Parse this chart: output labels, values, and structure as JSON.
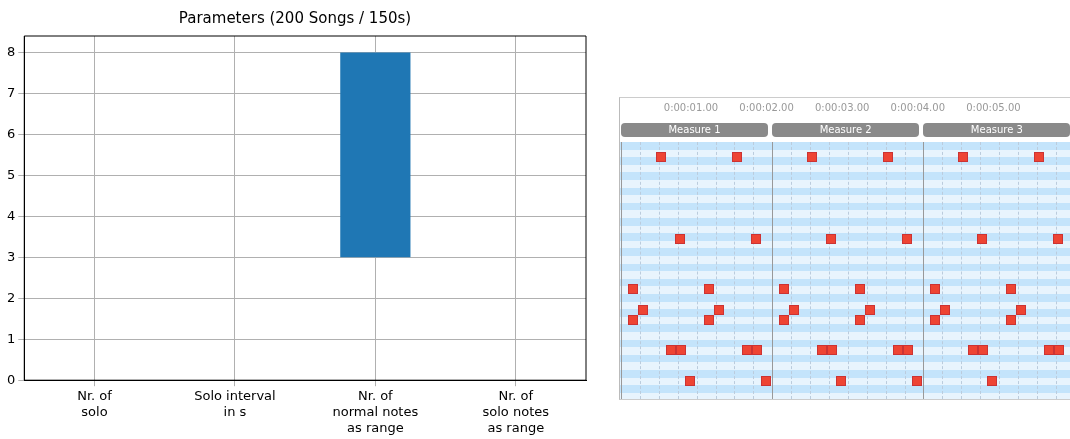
{
  "chart_data": [
    {
      "type": "bar",
      "title": "Parameters (200 Songs / 150s)",
      "categories": [
        "Nr. of\nsolo",
        "Solo interval\nin s",
        "Nr. of\nnormal notes\nas range",
        "Nr. of\nsolo notes\nas range"
      ],
      "values": [
        null,
        null,
        5,
        null
      ],
      "base": [
        null,
        null,
        3,
        null
      ],
      "color": "#1f77b4",
      "ylim": [
        0,
        8.4
      ],
      "yticks": [
        0,
        1,
        2,
        3,
        4,
        5,
        6,
        7,
        8
      ],
      "grid": true,
      "legend": false
    },
    {
      "type": "other",
      "annotations": [
        "0:00:01.00",
        "0:00:02.00",
        "0:00:03.00",
        "0:00:04.00",
        "0:00:05.00",
        "Measure 1",
        "Measure 2",
        "Measure 3"
      ]
    }
  ]
}
